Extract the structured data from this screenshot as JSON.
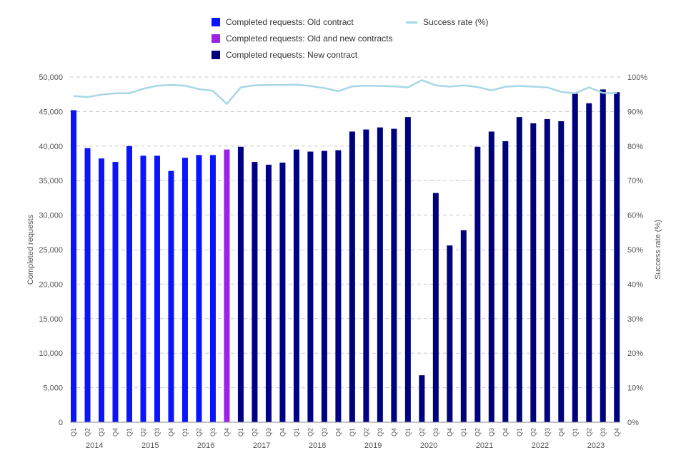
{
  "chart_data": {
    "type": "bar",
    "ylabel_left": "Completed requests",
    "ylabel_right": "Success rate (%)",
    "ylim_left": [
      0,
      50000
    ],
    "ylim_right": [
      0,
      100
    ],
    "left_ticks": [
      "0",
      "5,000",
      "10,000",
      "15,000",
      "20,000",
      "25,000",
      "30,000",
      "35,000",
      "40,000",
      "45,000",
      "50,000"
    ],
    "right_ticks": [
      "0%",
      "10%",
      "20%",
      "30%",
      "40%",
      "50%",
      "60%",
      "70%",
      "80%",
      "90%",
      "100%"
    ],
    "grid": "horizontal dashed",
    "legend_placement": "top",
    "legend": [
      {
        "label": "Completed requests: Old contract",
        "color": "#0a14ff",
        "kind": "bar"
      },
      {
        "label": "Completed requests: Old and new contracts",
        "color": "#9b22e6",
        "kind": "bar"
      },
      {
        "label": "Completed requests: New contract",
        "color": "#000080",
        "kind": "bar"
      },
      {
        "label": "Success rate (%)",
        "color": "#a7d7e6",
        "kind": "line"
      }
    ],
    "quarters": [
      "Q1",
      "Q2",
      "Q3",
      "Q4",
      "Q1",
      "Q2",
      "Q3",
      "Q4",
      "Q1",
      "Q2",
      "Q3",
      "Q4",
      "Q1",
      "Q2",
      "Q3",
      "Q4",
      "Q1",
      "Q2",
      "Q3",
      "Q4",
      "Q1",
      "Q2",
      "Q3",
      "Q4",
      "Q1",
      "Q2",
      "Q3",
      "Q4",
      "Q1",
      "Q2",
      "Q3",
      "Q4",
      "Q1",
      "Q2",
      "Q3",
      "Q4",
      "Q1",
      "Q2",
      "Q3",
      "Q4"
    ],
    "years": [
      "2014",
      "2015",
      "2016",
      "2017",
      "2018",
      "2019",
      "2020",
      "2021",
      "2022",
      "2023"
    ],
    "completed_requests": [
      45200,
      39700,
      38200,
      37700,
      40000,
      38600,
      38600,
      36400,
      38300,
      38700,
      38700,
      39500,
      39900,
      37700,
      37300,
      37600,
      39500,
      39200,
      39300,
      39400,
      42100,
      42400,
      42700,
      42500,
      44200,
      6800,
      33200,
      25600,
      27800,
      39900,
      42100,
      40700,
      44200,
      43300,
      43900,
      43600,
      47600,
      46200,
      48200,
      47800
    ],
    "contract": [
      "old",
      "old",
      "old",
      "old",
      "old",
      "old",
      "old",
      "old",
      "old",
      "old",
      "old",
      "both",
      "new",
      "new",
      "new",
      "new",
      "new",
      "new",
      "new",
      "new",
      "new",
      "new",
      "new",
      "new",
      "new",
      "new",
      "new",
      "new",
      "new",
      "new",
      "new",
      "new",
      "new",
      "new",
      "new",
      "new",
      "new",
      "new",
      "new",
      "new"
    ],
    "success_rate": [
      94.5,
      94.2,
      94.9,
      95.3,
      95.3,
      96.6,
      97.5,
      97.7,
      97.5,
      96.5,
      96.0,
      92.2,
      97.0,
      97.6,
      97.7,
      97.7,
      97.8,
      97.4,
      96.8,
      95.9,
      97.3,
      97.5,
      97.4,
      97.3,
      97.0,
      99.1,
      97.6,
      97.2,
      97.6,
      97.1,
      96.1,
      97.2,
      97.4,
      97.2,
      97.0,
      95.7,
      95.3,
      97.0,
      95.4,
      95.3
    ]
  }
}
